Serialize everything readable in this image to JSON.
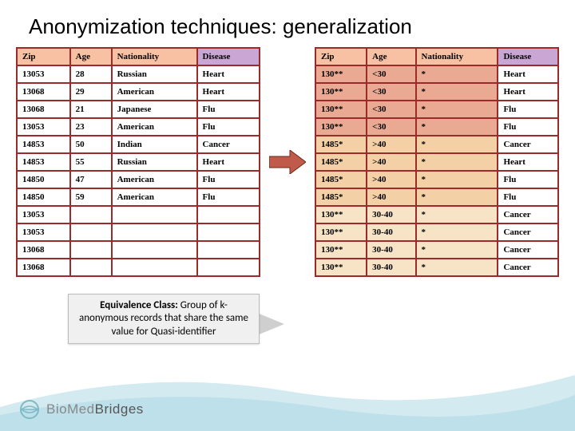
{
  "title": "Anonymization techniques: generalization",
  "colors": {
    "border": "#9b2b2b",
    "header_zip": "#f9c1a3",
    "header_age": "#f9c1a3",
    "header_nat": "#f9c1a3",
    "header_disease": "#c9a6d4",
    "group_a": "#e9a993",
    "group_b": "#f3d0a6",
    "group_c": "#f7e4c6",
    "arrow_fill": "#c05a4a",
    "arrow_stroke": "#6b2a19",
    "curve1": "#cfe8ef",
    "curve2": "#a9d6e2"
  },
  "columns": [
    "Zip",
    "Age",
    "Nationality",
    "Disease"
  ],
  "left_rows": [
    [
      "13053",
      "28",
      "Russian",
      "Heart"
    ],
    [
      "13068",
      "29",
      "American",
      "Heart"
    ],
    [
      "13068",
      "21",
      "Japanese",
      "Flu"
    ],
    [
      "13053",
      "23",
      "American",
      "Flu"
    ],
    [
      "14853",
      "50",
      "Indian",
      "Cancer"
    ],
    [
      "14853",
      "55",
      "Russian",
      "Heart"
    ],
    [
      "14850",
      "47",
      "American",
      "Flu"
    ],
    [
      "14850",
      "59",
      "American",
      "Flu"
    ],
    [
      "13053",
      "",
      "",
      ""
    ],
    [
      "13053",
      "",
      "",
      ""
    ],
    [
      "13068",
      "",
      "",
      ""
    ],
    [
      "13068",
      "",
      "",
      ""
    ]
  ],
  "right_rows": [
    {
      "cells": [
        "130**",
        "<30",
        "*",
        "Heart"
      ],
      "group": "a"
    },
    {
      "cells": [
        "130**",
        "<30",
        "*",
        "Heart"
      ],
      "group": "a"
    },
    {
      "cells": [
        "130**",
        "<30",
        "*",
        "Flu"
      ],
      "group": "a"
    },
    {
      "cells": [
        "130**",
        "<30",
        "*",
        "Flu"
      ],
      "group": "a"
    },
    {
      "cells": [
        "1485*",
        ">40",
        "*",
        "Cancer"
      ],
      "group": "b"
    },
    {
      "cells": [
        "1485*",
        ">40",
        "*",
        "Heart"
      ],
      "group": "b"
    },
    {
      "cells": [
        "1485*",
        ">40",
        "*",
        "Flu"
      ],
      "group": "b"
    },
    {
      "cells": [
        "1485*",
        ">40",
        "*",
        "Flu"
      ],
      "group": "b"
    },
    {
      "cells": [
        "130**",
        "30-40",
        "*",
        "Cancer"
      ],
      "group": "c"
    },
    {
      "cells": [
        "130**",
        "30-40",
        "*",
        "Cancer"
      ],
      "group": "c"
    },
    {
      "cells": [
        "130**",
        "30-40",
        "*",
        "Cancer"
      ],
      "group": "c"
    },
    {
      "cells": [
        "130**",
        "30-40",
        "*",
        "Cancer"
      ],
      "group": "c"
    }
  ],
  "callout_lead": "Equivalence Class:",
  "callout_body": " Group of k-anonymous records that share the same value for Quasi-identifier",
  "footer_brand_a": "BioMed",
  "footer_brand_b": "Bridges"
}
